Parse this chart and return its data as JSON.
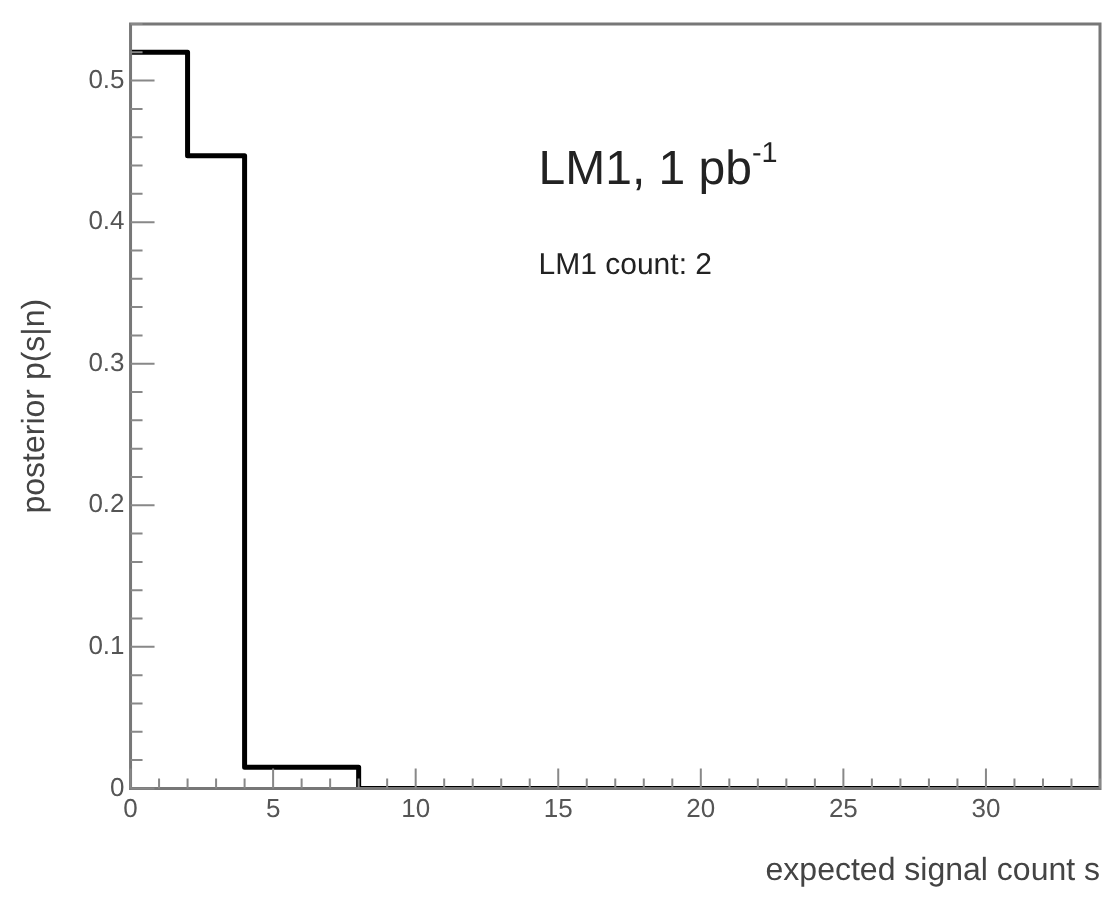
{
  "chart_data": {
    "type": "histogram",
    "xlabel": "expected signal count s",
    "ylabel": "posterior p(s|n)",
    "bins": [
      0,
      2,
      4,
      6,
      8,
      10,
      12,
      14,
      16,
      18,
      20,
      22,
      24,
      26,
      28,
      30,
      32,
      34
    ],
    "values": [
      0.52,
      0.447,
      0.015,
      0.015,
      0,
      0,
      0,
      0,
      0,
      0,
      0,
      0,
      0,
      0,
      0,
      0,
      0
    ],
    "color": "#000000",
    "xlim": [
      0,
      34
    ],
    "xticks": [
      0,
      5,
      10,
      15,
      20,
      25,
      30
    ],
    "ylim": [
      0,
      0.54
    ],
    "yticks": [
      0,
      0.1,
      0.2,
      0.3,
      0.4,
      0.5
    ],
    "grid": false,
    "legend": false,
    "annotations": [
      "LM1, 1 pb$^{-1}$",
      "LM1 count: 2"
    ]
  }
}
